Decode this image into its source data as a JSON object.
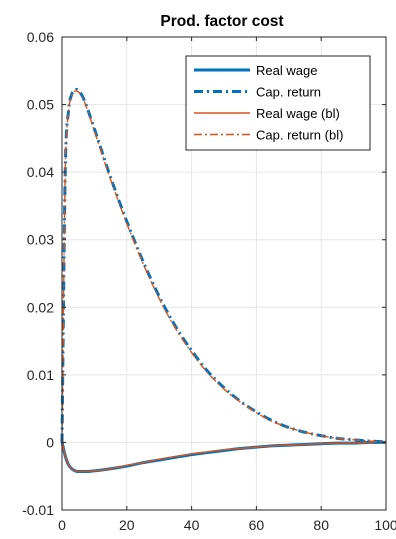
{
  "chart_data": {
    "type": "line",
    "title": "Prod. factor cost",
    "xlabel": "",
    "ylabel": "",
    "xlim": [
      0,
      100
    ],
    "ylim": [
      -0.01,
      0.06
    ],
    "xticks": [
      0,
      20,
      40,
      60,
      80,
      100
    ],
    "xtick_labels": [
      "0",
      "20",
      "40",
      "60",
      "80",
      "100"
    ],
    "yticks": [
      -0.01,
      0,
      0.01,
      0.02,
      0.03,
      0.04,
      0.05,
      0.06
    ],
    "ytick_labels": [
      "-0.01",
      "0",
      "0.01",
      "0.02",
      "0.03",
      "0.04",
      "0.05",
      "0.06"
    ],
    "grid": true,
    "legend_position": "top-right",
    "x": [
      0,
      1,
      2,
      3,
      4,
      5,
      6,
      7,
      8,
      10,
      12,
      15,
      20,
      25,
      30,
      35,
      40,
      45,
      50,
      55,
      60,
      65,
      70,
      75,
      80,
      85,
      90,
      95,
      100
    ],
    "series": [
      {
        "name": "Real wage",
        "color": "#0072BD",
        "style": "solid",
        "width": "thick",
        "values": [
          0.0001,
          -0.002,
          -0.0033,
          -0.0039,
          -0.0042,
          -0.0043,
          -0.0043,
          -0.0043,
          -0.0043,
          -0.0042,
          -0.0041,
          -0.0039,
          -0.0035,
          -0.003,
          -0.0026,
          -0.0022,
          -0.0018,
          -0.0015,
          -0.0012,
          -0.0009,
          -0.0007,
          -0.0005,
          -0.0004,
          -0.0003,
          -0.0002,
          -0.0001,
          -0.0001,
          0.0,
          0.0
        ]
      },
      {
        "name": "Cap. return",
        "color": "#0072BD",
        "style": "dashdot",
        "width": "thick",
        "values": [
          0.0,
          0.04,
          0.049,
          0.0515,
          0.0522,
          0.0521,
          0.0515,
          0.0505,
          0.0492,
          0.0464,
          0.0435,
          0.0392,
          0.0327,
          0.0268,
          0.0216,
          0.0172,
          0.0136,
          0.0105,
          0.0081,
          0.0061,
          0.0045,
          0.0032,
          0.0022,
          0.0015,
          0.001,
          0.0006,
          0.0004,
          0.0002,
          0.0001
        ]
      },
      {
        "name": "Real wage (bl)",
        "color": "#D95319",
        "style": "solid",
        "width": "thin",
        "values": [
          0.0001,
          -0.002,
          -0.0033,
          -0.0039,
          -0.0042,
          -0.0043,
          -0.0043,
          -0.0043,
          -0.0043,
          -0.0042,
          -0.0041,
          -0.0039,
          -0.0034,
          -0.003,
          -0.0025,
          -0.0021,
          -0.0017,
          -0.0014,
          -0.0011,
          -0.0009,
          -0.0007,
          -0.0005,
          -0.0004,
          -0.0003,
          -0.0002,
          -0.0001,
          -0.0001,
          0.0,
          0.0
        ]
      },
      {
        "name": "Cap. return (bl)",
        "color": "#D95319",
        "style": "dashdot",
        "width": "thin",
        "values": [
          0.0,
          0.0398,
          0.0488,
          0.0513,
          0.052,
          0.0519,
          0.0513,
          0.0503,
          0.049,
          0.0461,
          0.0432,
          0.0389,
          0.0324,
          0.0265,
          0.0213,
          0.0169,
          0.0133,
          0.0103,
          0.0079,
          0.006,
          0.0044,
          0.0031,
          0.0022,
          0.0015,
          0.001,
          0.0006,
          0.0004,
          0.0002,
          0.0001
        ]
      }
    ]
  }
}
